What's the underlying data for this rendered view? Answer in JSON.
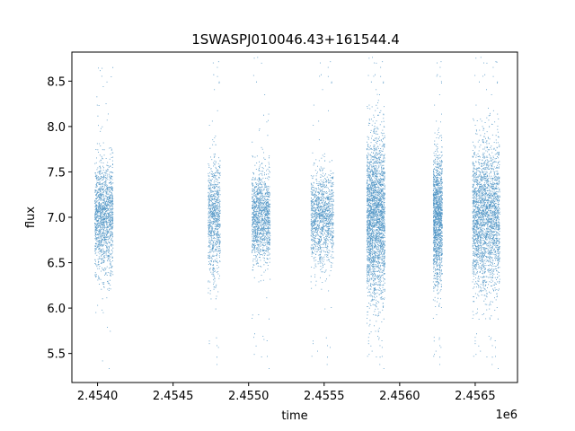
{
  "chart_data": {
    "type": "scatter",
    "title": "1SWASPJ010046.43+161544.4",
    "xlabel": "time",
    "ylabel": "flux",
    "x_offset_label": "1e6",
    "xlim": [
      2.45383,
      2.45678
    ],
    "ylim": [
      5.18,
      8.82
    ],
    "x_ticks": [
      2.454,
      2.4545,
      2.455,
      2.4555,
      2.456,
      2.4565
    ],
    "x_tick_labels": [
      "2.4540",
      "2.4545",
      "2.4550",
      "2.4555",
      "2.4560",
      "2.4565"
    ],
    "y_ticks": [
      5.5,
      6.0,
      6.5,
      7.0,
      7.5,
      8.0,
      8.5
    ],
    "y_tick_labels": [
      "5.5",
      "6.0",
      "6.5",
      "7.0",
      "7.5",
      "8.0",
      "8.5"
    ],
    "grid": false,
    "marker_color": "#1f77b4",
    "point_groups": [
      {
        "t_start": 2.45398,
        "t_end": 2.4541,
        "flux_center": 7.0,
        "flux_spread": 0.3,
        "n": 1500
      },
      {
        "t_start": 2.45473,
        "t_end": 2.45481,
        "flux_center": 7.0,
        "flux_spread": 0.32,
        "n": 900
      },
      {
        "t_start": 2.45502,
        "t_end": 2.45514,
        "flux_center": 7.0,
        "flux_spread": 0.25,
        "n": 1300
      },
      {
        "t_start": 2.45541,
        "t_end": 2.45556,
        "flux_center": 7.0,
        "flux_spread": 0.25,
        "n": 1300
      },
      {
        "t_start": 2.45578,
        "t_end": 2.4559,
        "flux_center": 7.0,
        "flux_spread": 0.45,
        "n": 3400
      },
      {
        "t_start": 2.45622,
        "t_end": 2.45628,
        "flux_center": 7.0,
        "flux_spread": 0.35,
        "n": 1500
      },
      {
        "t_start": 2.45648,
        "t_end": 2.45666,
        "flux_center": 7.0,
        "flux_spread": 0.4,
        "n": 3000
      }
    ]
  }
}
